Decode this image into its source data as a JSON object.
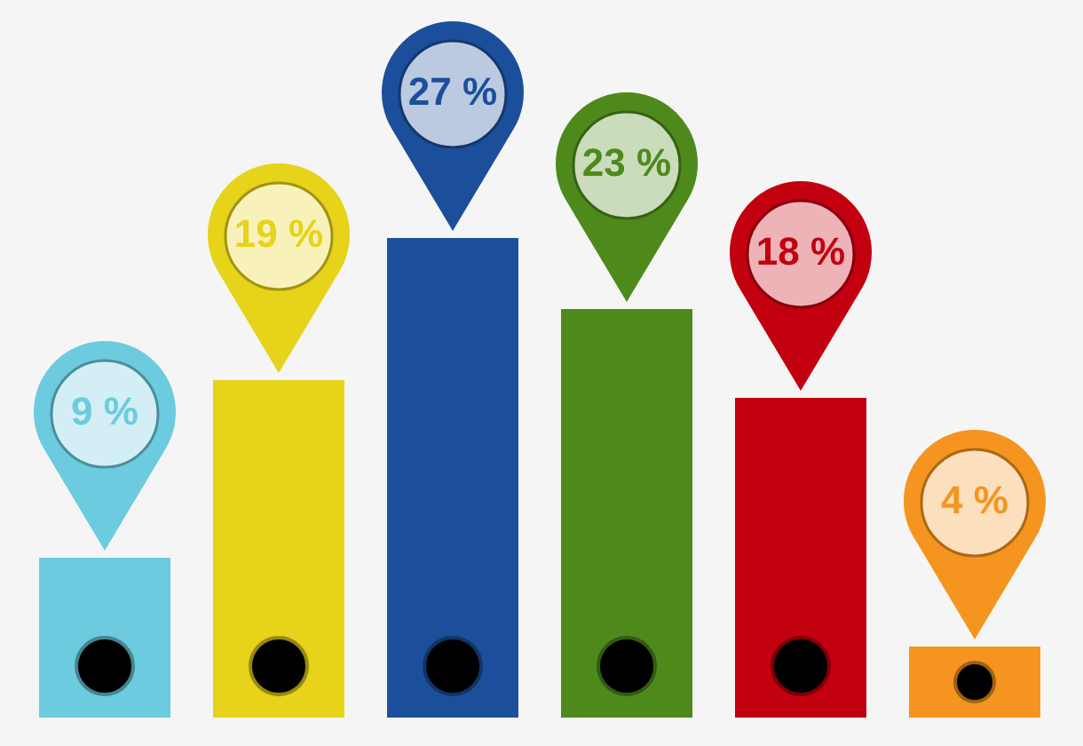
{
  "chart_data": {
    "type": "bar",
    "categories": [
      null,
      null,
      null,
      null,
      null,
      null
    ],
    "values": [
      9,
      19,
      27,
      23,
      18,
      4
    ],
    "colors": [
      "#6ccbdf",
      "#e6d31a",
      "#1c4f9b",
      "#4e8a1b",
      "#c2000f",
      "#f5951f"
    ],
    "value_labels": [
      "9 %",
      "19 %",
      "27 %",
      "23 %",
      "18 %",
      "4 %"
    ],
    "tick_labels": false
  }
}
